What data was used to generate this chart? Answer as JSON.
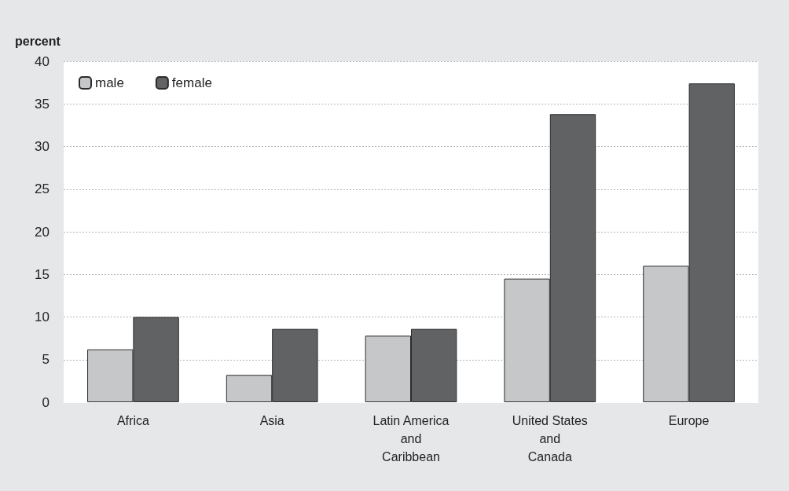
{
  "chart_data": {
    "type": "bar",
    "ylabel": "percent",
    "categories": [
      "Africa",
      "Asia",
      "Latin America\nand\nCaribbean",
      "United States\nand\nCanada",
      "Europe"
    ],
    "series": [
      {
        "name": "male",
        "color": "#c6c7c9",
        "values": [
          6.2,
          3.2,
          7.8,
          14.5,
          16.0
        ]
      },
      {
        "name": "female",
        "color": "#616264",
        "values": [
          10.0,
          8.6,
          8.6,
          33.8,
          37.4
        ]
      }
    ],
    "ylim": [
      0,
      40
    ],
    "yticks": [
      0,
      5,
      10,
      15,
      20,
      25,
      30,
      35,
      40
    ],
    "grid": "y",
    "legend": "top left"
  }
}
